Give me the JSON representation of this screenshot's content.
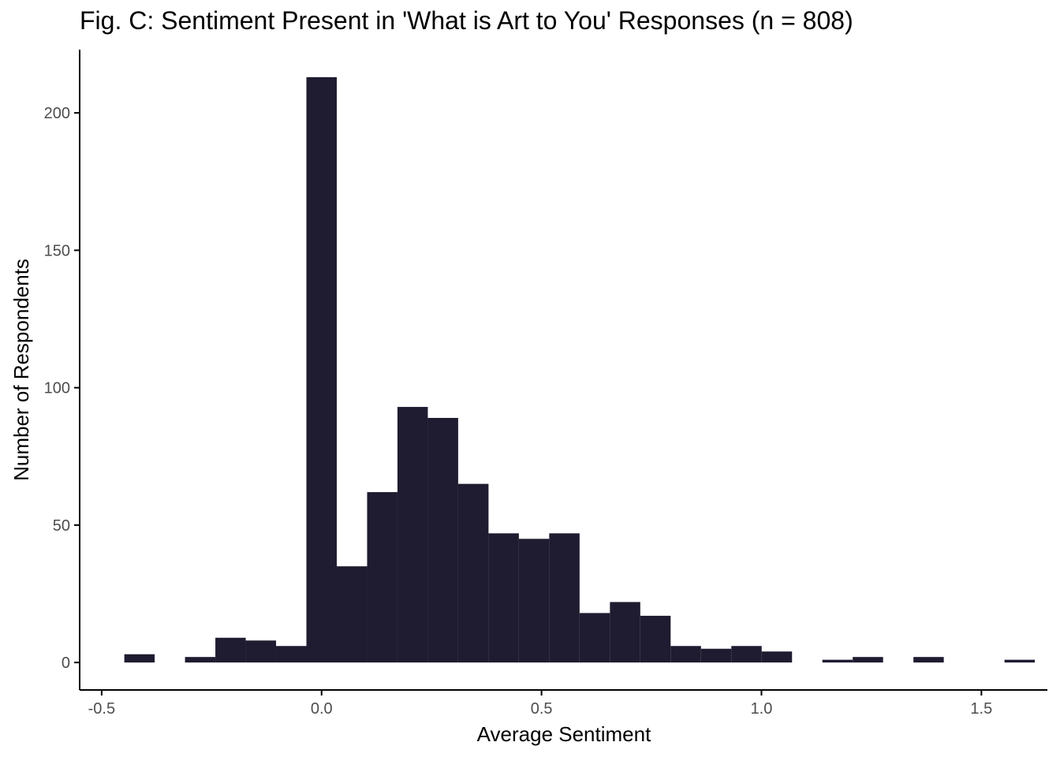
{
  "chart_data": {
    "type": "bar",
    "title": "Fig. C: Sentiment Present in 'What is Art to You' Responses (n = 808)",
    "xlabel": "Average Sentiment",
    "ylabel": "Number of Respondents",
    "xlim": [
      -0.55,
      1.65
    ],
    "ylim": [
      -10,
      223
    ],
    "x_ticks": [
      -0.5,
      0.0,
      0.5,
      1.0,
      1.5
    ],
    "x_tick_labels": [
      "-0.5",
      "0.0",
      "0.5",
      "1.0",
      "1.5"
    ],
    "y_ticks": [
      0,
      50,
      100,
      150,
      200
    ],
    "y_tick_labels": [
      "0",
      "50",
      "100",
      "150",
      "200"
    ],
    "bin_width": 0.069,
    "bins": [
      {
        "x": -0.414,
        "count": 3
      },
      {
        "x": -0.345,
        "count": 0
      },
      {
        "x": -0.276,
        "count": 2
      },
      {
        "x": -0.207,
        "count": 9
      },
      {
        "x": -0.138,
        "count": 8
      },
      {
        "x": -0.069,
        "count": 6
      },
      {
        "x": 0.0,
        "count": 213
      },
      {
        "x": 0.069,
        "count": 35
      },
      {
        "x": 0.138,
        "count": 62
      },
      {
        "x": 0.207,
        "count": 93
      },
      {
        "x": 0.276,
        "count": 89
      },
      {
        "x": 0.345,
        "count": 65
      },
      {
        "x": 0.414,
        "count": 47
      },
      {
        "x": 0.483,
        "count": 45
      },
      {
        "x": 0.552,
        "count": 47
      },
      {
        "x": 0.621,
        "count": 18
      },
      {
        "x": 0.69,
        "count": 22
      },
      {
        "x": 0.759,
        "count": 17
      },
      {
        "x": 0.828,
        "count": 6
      },
      {
        "x": 0.897,
        "count": 5
      },
      {
        "x": 0.966,
        "count": 6
      },
      {
        "x": 1.035,
        "count": 4
      },
      {
        "x": 1.104,
        "count": 0
      },
      {
        "x": 1.173,
        "count": 1
      },
      {
        "x": 1.242,
        "count": 2
      },
      {
        "x": 1.311,
        "count": 0
      },
      {
        "x": 1.38,
        "count": 2
      },
      {
        "x": 1.449,
        "count": 0
      },
      {
        "x": 1.518,
        "count": 0
      },
      {
        "x": 1.587,
        "count": 1
      }
    ],
    "bar_color": "#1f1b30",
    "grid": false
  }
}
